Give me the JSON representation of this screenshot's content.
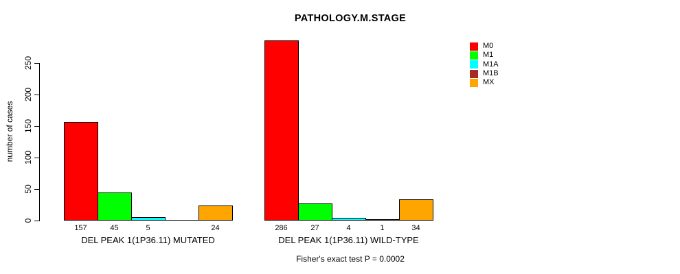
{
  "chart_data": {
    "type": "bar",
    "title": "PATHOLOGY.M.STAGE",
    "ylabel": "number of cases",
    "xlabel": "",
    "yticks": [
      0,
      50,
      100,
      150,
      200,
      250
    ],
    "ylim": [
      0,
      286
    ],
    "grid": false,
    "legend_position": "right",
    "series_names": [
      "M0",
      "M1",
      "M1A",
      "M1B",
      "MX"
    ],
    "series_colors": [
      "#FF0000",
      "#00FF00",
      "#00FFFF",
      "#A52A2A",
      "#FFA500"
    ],
    "legend": [
      {
        "label": "M0",
        "color": "#FF0000"
      },
      {
        "label": "M1",
        "color": "#00FF00"
      },
      {
        "label": "M1A",
        "color": "#00FFFF"
      },
      {
        "label": "M1B",
        "color": "#A52A2A"
      },
      {
        "label": "MX",
        "color": "#FFA500"
      }
    ],
    "groups": [
      {
        "label": "DEL PEAK  1(1P36.11) MUTATED",
        "values": [
          157,
          45,
          5,
          0,
          24
        ],
        "value_labels": [
          "157",
          "45",
          "5",
          "",
          "24"
        ]
      },
      {
        "label": "DEL PEAK  1(1P36.11) WILD-TYPE",
        "values": [
          286,
          27,
          4,
          1,
          34
        ],
        "value_labels": [
          "286",
          "27",
          "4",
          "1",
          "34"
        ]
      }
    ],
    "annotation": "Fisher's exact test P = 0.0002"
  }
}
